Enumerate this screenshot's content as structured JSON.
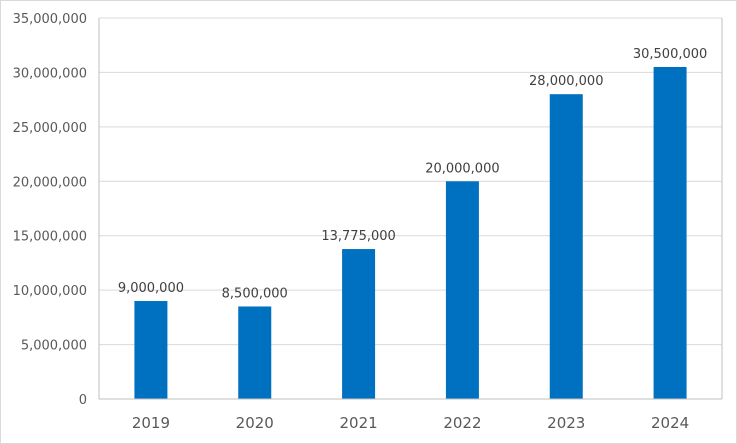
{
  "chart_data": {
    "type": "bar",
    "title": "",
    "xlabel": "",
    "ylabel": "",
    "categories": [
      "2019",
      "2020",
      "2021",
      "2022",
      "2023",
      "2024"
    ],
    "values": [
      9000000,
      8500000,
      13775000,
      20000000,
      28000000,
      30500000
    ],
    "data_labels": [
      "9,000,000",
      "8,500,000",
      "13,775,000",
      "20,000,000",
      "28,000,000",
      "30,500,000"
    ],
    "ylim": [
      0,
      35000000
    ],
    "yticks": [
      0,
      5000000,
      10000000,
      15000000,
      20000000,
      25000000,
      30000000,
      35000000
    ],
    "ytick_labels": [
      "0",
      "5,000,000",
      "10,000,000",
      "15,000,000",
      "20,000,000",
      "25,000,000",
      "30,000,000",
      "35,000,000"
    ],
    "grid": true,
    "legend": "none",
    "colors": {
      "bar": "#0070C0",
      "grid": "#d9d9d9",
      "axis": "#bfbfbf",
      "tick_text": "#595959",
      "label_text": "#404040"
    }
  }
}
